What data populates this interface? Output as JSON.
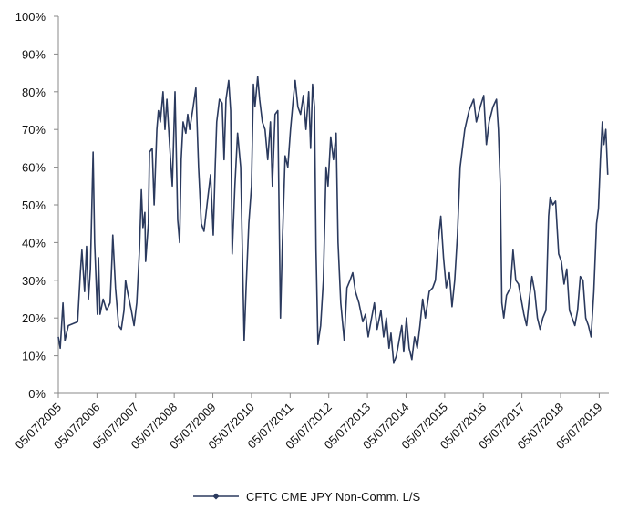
{
  "chart_data": {
    "type": "line",
    "x": [
      2005.51,
      2005.56,
      2005.63,
      2005.68,
      2005.77,
      2006.01,
      2006.08,
      2006.12,
      2006.19,
      2006.24,
      2006.29,
      2006.34,
      2006.41,
      2006.45,
      2006.52,
      2006.55,
      2006.59,
      2006.67,
      2006.76,
      2006.85,
      2006.9,
      2006.92,
      2006.99,
      2007.07,
      2007.14,
      2007.21,
      2007.25,
      2007.3,
      2007.4,
      2007.47,
      2007.54,
      2007.61,
      2007.66,
      2007.7,
      2007.75,
      2007.77,
      2007.84,
      2007.87,
      2007.94,
      2007.99,
      2008.06,
      2008.1,
      2008.15,
      2008.22,
      2008.27,
      2008.32,
      2008.39,
      2008.46,
      2008.53,
      2008.6,
      2008.65,
      2008.69,
      2008.74,
      2008.81,
      2008.86,
      2008.91,
      2009.0,
      2009.07,
      2009.14,
      2009.21,
      2009.28,
      2009.38,
      2009.45,
      2009.52,
      2009.57,
      2009.61,
      2009.68,
      2009.75,
      2009.8,
      2009.85,
      2009.92,
      2009.97,
      2010.01,
      2010.08,
      2010.15,
      2010.23,
      2010.32,
      2010.37,
      2010.44,
      2010.51,
      2010.56,
      2010.6,
      2010.67,
      2010.72,
      2010.79,
      2010.86,
      2010.93,
      2011.0,
      2011.05,
      2011.12,
      2011.19,
      2011.26,
      2011.31,
      2011.38,
      2011.45,
      2011.52,
      2011.59,
      2011.64,
      2011.71,
      2011.78,
      2011.85,
      2011.92,
      2011.99,
      2012.04,
      2012.09,
      2012.14,
      2012.18,
      2012.23,
      2012.3,
      2012.37,
      2012.44,
      2012.49,
      2012.56,
      2012.63,
      2012.7,
      2012.75,
      2012.82,
      2012.91,
      2012.98,
      2013.06,
      2013.13,
      2013.2,
      2013.29,
      2013.39,
      2013.46,
      2013.53,
      2013.6,
      2013.69,
      2013.76,
      2013.86,
      2013.93,
      2014.0,
      2014.07,
      2014.12,
      2014.19,
      2014.26,
      2014.33,
      2014.4,
      2014.45,
      2014.52,
      2014.59,
      2014.66,
      2014.73,
      2014.8,
      2014.87,
      2014.94,
      2015.01,
      2015.11,
      2015.2,
      2015.27,
      2015.34,
      2015.41,
      2015.48,
      2015.55,
      2015.63,
      2015.7,
      2015.77,
      2015.84,
      2015.91,
      2016.03,
      2016.14,
      2016.26,
      2016.33,
      2016.43,
      2016.52,
      2016.59,
      2016.66,
      2016.76,
      2016.85,
      2016.9,
      2016.95,
      2016.99,
      2017.04,
      2017.11,
      2017.21,
      2017.28,
      2017.35,
      2017.42,
      2017.49,
      2017.56,
      2017.63,
      2017.7,
      2017.77,
      2017.84,
      2017.91,
      2017.98,
      2018.05,
      2018.13,
      2018.2,
      2018.24,
      2018.31,
      2018.38,
      2018.46,
      2018.53,
      2018.6,
      2018.67,
      2018.74,
      2018.81,
      2018.88,
      2018.95,
      2019.02,
      2019.09,
      2019.16,
      2019.23,
      2019.3,
      2019.37,
      2019.44,
      2019.49,
      2019.54,
      2019.59,
      2019.63,
      2019.68,
      2019.73
    ],
    "series": [
      {
        "name": "CFTC CME JPY Non-Comm. L/S",
        "color": "#2b3a5e",
        "values": [
          15,
          12,
          24,
          14,
          18,
          19,
          32,
          38,
          27,
          39,
          25,
          33,
          64,
          40,
          21,
          36,
          21,
          25,
          22,
          24,
          36,
          42,
          28,
          18,
          17,
          22,
          30,
          27,
          22,
          18,
          24,
          38,
          54,
          44,
          48,
          35,
          45,
          64,
          65,
          50,
          70,
          75,
          72,
          80,
          70,
          78,
          66,
          55,
          80,
          46,
          40,
          62,
          72,
          69,
          74,
          70,
          76,
          81,
          60,
          45,
          43,
          52,
          58,
          42,
          60,
          72,
          78,
          77,
          62,
          78,
          83,
          75,
          37,
          55,
          69,
          60,
          14,
          28,
          45,
          55,
          82,
          76,
          84,
          78,
          72,
          70,
          62,
          72,
          55,
          74,
          75,
          20,
          40,
          63,
          60,
          70,
          78,
          83,
          76,
          74,
          79,
          70,
          80,
          65,
          82,
          76,
          38,
          13,
          18,
          30,
          60,
          55,
          68,
          62,
          69,
          40,
          24,
          14,
          28,
          30,
          32,
          27,
          24,
          19,
          21,
          15,
          19,
          24,
          17,
          22,
          15,
          20,
          12,
          16,
          8,
          10,
          14,
          18,
          11,
          20,
          12,
          9,
          15,
          12,
          18,
          25,
          20,
          27,
          28,
          30,
          40,
          47,
          36,
          28,
          32,
          23,
          30,
          42,
          60,
          70,
          75,
          78,
          72,
          76,
          79,
          66,
          72,
          76,
          78,
          70,
          55,
          24,
          20,
          26,
          28,
          38,
          30,
          29,
          25,
          21,
          18,
          25,
          31,
          27,
          20,
          17,
          20,
          22,
          47,
          52,
          50,
          51,
          37,
          35,
          29,
          33,
          22,
          20,
          18,
          22,
          31,
          30,
          20,
          18,
          15,
          27,
          45,
          49,
          62,
          72,
          66,
          70,
          58
        ]
      }
    ],
    "xlim": [
      2005.51,
      2019.76
    ],
    "xticks": [
      {
        "value": 2005.51,
        "label": "05/07/2005"
      },
      {
        "value": 2006.51,
        "label": "05/07/2006"
      },
      {
        "value": 2007.51,
        "label": "05/07/2007"
      },
      {
        "value": 2008.51,
        "label": "05/07/2008"
      },
      {
        "value": 2009.51,
        "label": "05/07/2009"
      },
      {
        "value": 2010.51,
        "label": "05/07/2010"
      },
      {
        "value": 2011.51,
        "label": "05/07/2011"
      },
      {
        "value": 2012.51,
        "label": "05/07/2012"
      },
      {
        "value": 2013.51,
        "label": "05/07/2013"
      },
      {
        "value": 2014.51,
        "label": "05/07/2014"
      },
      {
        "value": 2015.51,
        "label": "05/07/2015"
      },
      {
        "value": 2016.51,
        "label": "05/07/2016"
      },
      {
        "value": 2017.51,
        "label": "05/07/2017"
      },
      {
        "value": 2018.51,
        "label": "05/07/2018"
      },
      {
        "value": 2019.51,
        "label": "05/07/2019"
      }
    ],
    "ylim": [
      0,
      100
    ],
    "yticks": [
      {
        "value": 0,
        "label": "0%"
      },
      {
        "value": 10,
        "label": "10%"
      },
      {
        "value": 20,
        "label": "20%"
      },
      {
        "value": 30,
        "label": "30%"
      },
      {
        "value": 40,
        "label": "40%"
      },
      {
        "value": 50,
        "label": "50%"
      },
      {
        "value": 60,
        "label": "60%"
      },
      {
        "value": 70,
        "label": "70%"
      },
      {
        "value": 80,
        "label": "80%"
      },
      {
        "value": 90,
        "label": "90%"
      },
      {
        "value": 100,
        "label": "100%"
      }
    ],
    "grid": false,
    "legend": "bottom"
  }
}
